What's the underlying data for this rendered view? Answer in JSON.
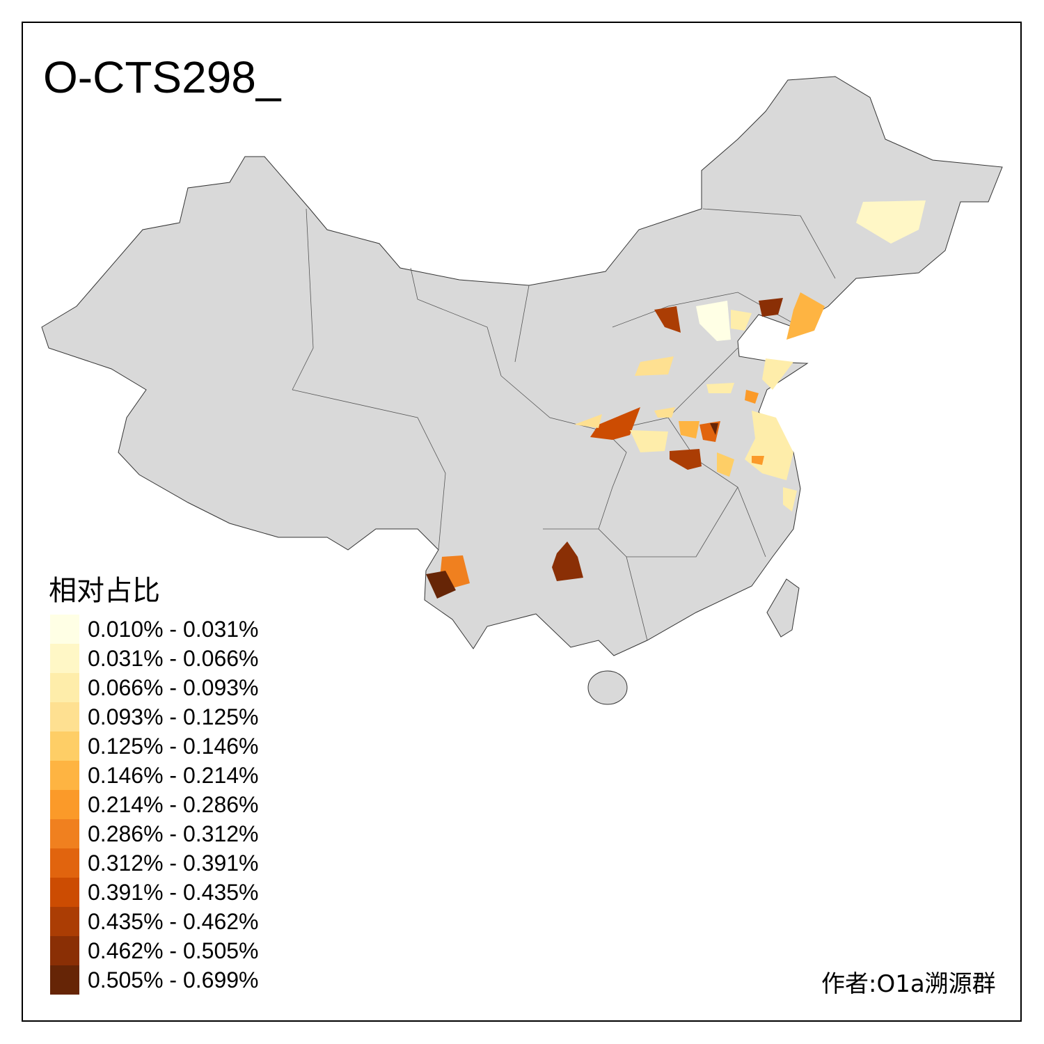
{
  "title": "O-CTS298_",
  "legend": {
    "title": "相对占比",
    "items": [
      {
        "label": "0.010% - 0.031%",
        "color": "#FFFFE5"
      },
      {
        "label": "0.031% - 0.066%",
        "color": "#FFF7C6"
      },
      {
        "label": "0.066% - 0.093%",
        "color": "#FEEDAA"
      },
      {
        "label": "0.093% - 0.125%",
        "color": "#FEE091"
      },
      {
        "label": "0.125% - 0.146%",
        "color": "#FECE66"
      },
      {
        "label": "0.146% - 0.214%",
        "color": "#FEB442"
      },
      {
        "label": "0.214% - 0.286%",
        "color": "#FB9A29"
      },
      {
        "label": "0.286% - 0.312%",
        "color": "#F0801F"
      },
      {
        "label": "0.312% - 0.391%",
        "color": "#E1640E"
      },
      {
        "label": "0.391% - 0.435%",
        "color": "#CC4C02"
      },
      {
        "label": "0.435% - 0.462%",
        "color": "#AB3D04"
      },
      {
        "label": "0.462% - 0.505%",
        "color": "#8A2F05"
      },
      {
        "label": "0.505% - 0.699%",
        "color": "#662506"
      }
    ]
  },
  "map": {
    "base_color": "#D9D9D9",
    "border_color": "#333333"
  },
  "credit": "作者:O1a溯源群"
}
